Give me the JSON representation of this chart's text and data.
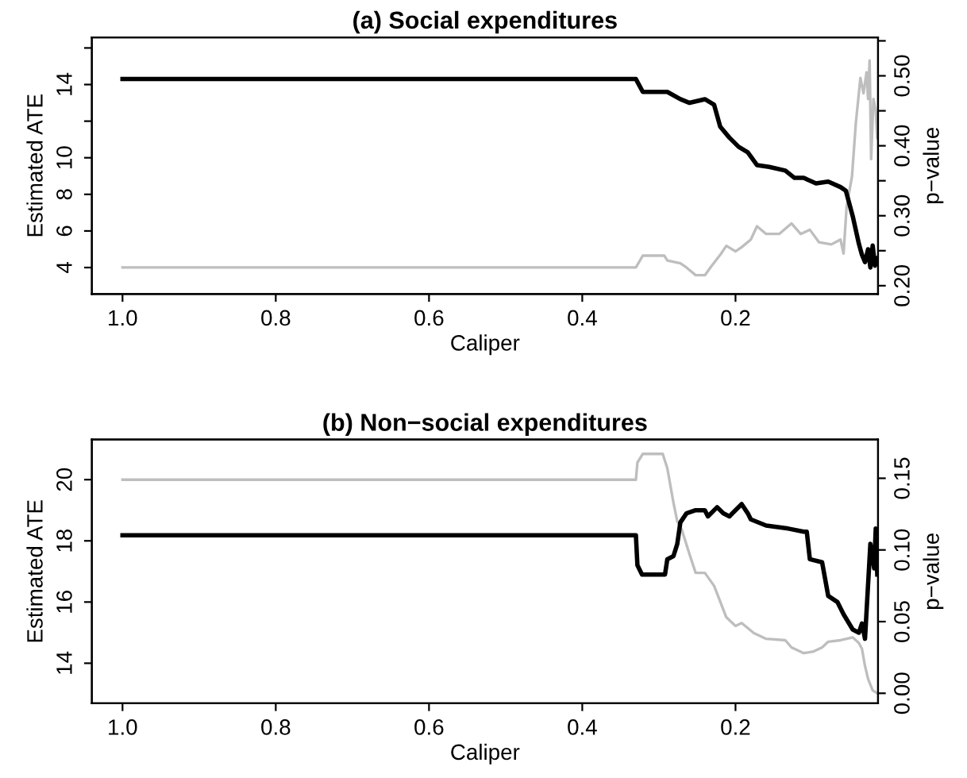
{
  "chart_data": [
    {
      "type": "line",
      "title": "(a) Social expenditures",
      "xlabel": "Caliper",
      "ylabel": "Estimated ATE",
      "y2label": "p−value",
      "grid": false,
      "marker": "none",
      "line_style": "solid",
      "xlim": [
        1.04,
        0.014
      ],
      "xticks": [
        {
          "value": 1.0,
          "label": "1.0"
        },
        {
          "value": 0.8,
          "label": "0.8"
        },
        {
          "value": 0.6,
          "label": "0.6"
        },
        {
          "value": 0.4,
          "label": "0.4"
        },
        {
          "value": 0.2,
          "label": "0.2"
        }
      ],
      "ylim": [
        2.55,
        16.58
      ],
      "yticks": [
        4,
        6,
        8,
        10,
        {
          "value": 12,
          "label": null
        },
        14,
        {
          "value": 16,
          "label": null
        }
      ],
      "y2lim": [
        0.188,
        0.555
      ],
      "y2ticks": [
        {
          "value": 0.2,
          "label": "0.20"
        },
        {
          "value": 0.25,
          "label": null
        },
        {
          "value": 0.3,
          "label": "0.30"
        },
        {
          "value": 0.35,
          "label": null
        },
        {
          "value": 0.4,
          "label": "0.40"
        },
        {
          "value": 0.45,
          "label": null
        },
        {
          "value": 0.5,
          "label": "0.50"
        },
        {
          "value": 0.55,
          "label": null
        }
      ],
      "series": [
        {
          "color": "#bebebe",
          "axis": "y2",
          "x": [
            1.0,
            0.33,
            0.321,
            0.293,
            0.289,
            0.272,
            0.264,
            0.252,
            0.24,
            0.232,
            0.22,
            0.212,
            0.2,
            0.192,
            0.18,
            0.172,
            0.16,
            0.143,
            0.127,
            0.115,
            0.103,
            0.091,
            0.075,
            0.063,
            0.059,
            0.055,
            0.048,
            0.043,
            0.037,
            0.033,
            0.029,
            0.027,
            0.025,
            0.023,
            0.02,
            0.017,
            0.015
          ],
          "values": [
            0.226,
            0.226,
            0.243,
            0.243,
            0.236,
            0.232,
            0.226,
            0.215,
            0.215,
            0.227,
            0.244,
            0.257,
            0.249,
            0.255,
            0.266,
            0.285,
            0.274,
            0.274,
            0.289,
            0.274,
            0.28,
            0.262,
            0.259,
            0.266,
            0.246,
            0.313,
            0.356,
            0.432,
            0.497,
            0.475,
            0.505,
            0.467,
            0.522,
            0.381,
            0.467,
            0.45,
            0.411
          ]
        },
        {
          "color": "#000000",
          "x": [
            1.0,
            0.33,
            0.321,
            0.289,
            0.272,
            0.26,
            0.24,
            0.228,
            0.22,
            0.208,
            0.196,
            0.184,
            0.172,
            0.156,
            0.135,
            0.123,
            0.111,
            0.095,
            0.079,
            0.063,
            0.056,
            0.047,
            0.039,
            0.035,
            0.031,
            0.027,
            0.024,
            0.021,
            0.018,
            0.015
          ],
          "values": [
            14.3,
            14.3,
            13.6,
            13.6,
            13.2,
            13.0,
            13.2,
            12.9,
            11.7,
            11.1,
            10.6,
            10.3,
            9.6,
            9.5,
            9.3,
            8.9,
            8.9,
            8.6,
            8.7,
            8.4,
            8.2,
            6.8,
            5.3,
            4.7,
            4.3,
            5.0,
            4.0,
            5.2,
            4.1,
            4.5
          ]
        }
      ]
    },
    {
      "type": "line",
      "title": "(b) Non−social expenditures",
      "xlabel": "Caliper",
      "ylabel": "Estimated ATE",
      "y2label": "p−value",
      "grid": false,
      "marker": "none",
      "line_style": "solid",
      "xlim": [
        1.04,
        0.014
      ],
      "xticks": [
        {
          "value": 1.0,
          "label": "1.0"
        },
        {
          "value": 0.8,
          "label": "0.8"
        },
        {
          "value": 0.6,
          "label": "0.6"
        },
        {
          "value": 0.4,
          "label": "0.4"
        },
        {
          "value": 0.2,
          "label": "0.2"
        }
      ],
      "ylim": [
        12.69,
        21.31
      ],
      "yticks": [
        14,
        16,
        18,
        20
      ],
      "y2lim": [
        -0.007,
        0.177
      ],
      "y2ticks": [
        {
          "value": 0.0,
          "label": "0.00"
        },
        {
          "value": 0.05,
          "label": "0.05"
        },
        {
          "value": 0.1,
          "label": "0.10"
        },
        {
          "value": 0.15,
          "label": "0.15"
        }
      ],
      "series": [
        {
          "color": "#bebebe",
          "axis": "y2",
          "x": [
            1.0,
            0.33,
            0.328,
            0.321,
            0.295,
            0.289,
            0.281,
            0.276,
            0.27,
            0.26,
            0.252,
            0.24,
            0.228,
            0.22,
            0.212,
            0.2,
            0.192,
            0.176,
            0.16,
            0.135,
            0.127,
            0.111,
            0.099,
            0.087,
            0.079,
            0.063,
            0.047,
            0.039,
            0.035,
            0.031,
            0.027,
            0.021,
            0.015
          ],
          "values": [
            0.149,
            0.149,
            0.161,
            0.167,
            0.167,
            0.157,
            0.133,
            0.12,
            0.114,
            0.097,
            0.084,
            0.084,
            0.075,
            0.064,
            0.053,
            0.047,
            0.049,
            0.042,
            0.038,
            0.037,
            0.032,
            0.028,
            0.029,
            0.032,
            0.036,
            0.037,
            0.039,
            0.035,
            0.031,
            0.019,
            0.01,
            0.002,
            0.0
          ]
        },
        {
          "color": "#000000",
          "x": [
            1.0,
            0.33,
            0.328,
            0.322,
            0.292,
            0.289,
            0.281,
            0.276,
            0.272,
            0.264,
            0.252,
            0.24,
            0.236,
            0.224,
            0.216,
            0.208,
            0.204,
            0.192,
            0.184,
            0.18,
            0.16,
            0.131,
            0.111,
            0.107,
            0.103,
            0.087,
            0.079,
            0.067,
            0.059,
            0.047,
            0.039,
            0.035,
            0.031,
            0.024,
            0.019,
            0.017,
            0.015
          ],
          "values": [
            18.18,
            18.18,
            17.2,
            16.9,
            16.9,
            17.4,
            17.5,
            17.9,
            18.6,
            18.9,
            19.0,
            19.0,
            18.8,
            19.1,
            18.9,
            18.8,
            18.9,
            19.2,
            18.9,
            18.7,
            18.5,
            18.4,
            18.3,
            18.3,
            17.4,
            17.3,
            16.2,
            16.0,
            15.6,
            15.1,
            15.0,
            15.3,
            14.8,
            17.9,
            17.1,
            18.4,
            16.9
          ]
        }
      ]
    }
  ]
}
